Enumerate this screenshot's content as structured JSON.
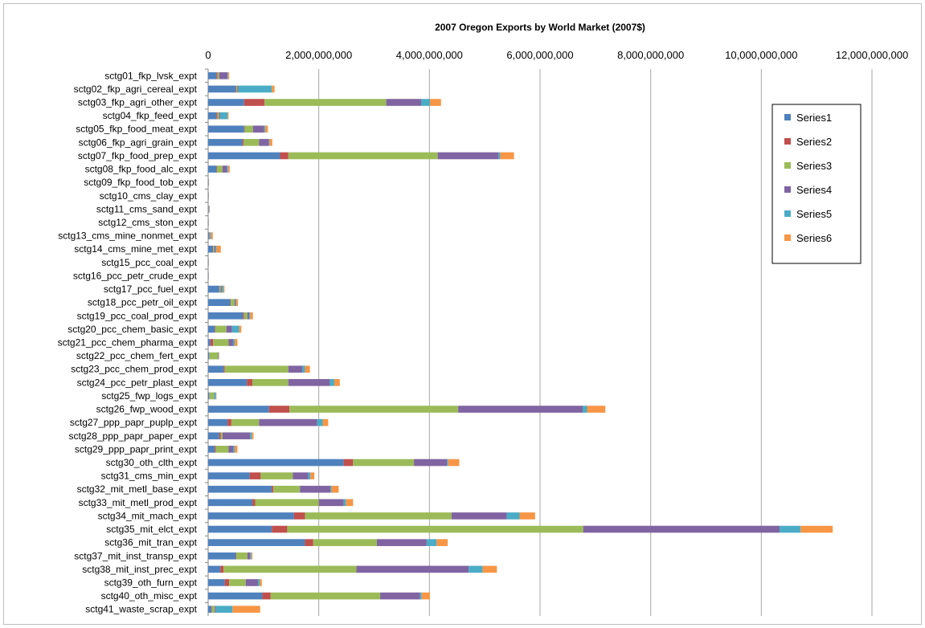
{
  "chart_data": {
    "type": "bar",
    "orientation": "horizontal",
    "stacked": true,
    "title": "2007 Oregon Exports by World Market (2007$)",
    "xlim": [
      0,
      12000000000
    ],
    "x_ticks": [
      0,
      2000000000,
      4000000000,
      6000000000,
      8000000000,
      10000000000,
      12000000000
    ],
    "x_tick_labels": [
      "0",
      "2,000,000,000",
      "4,000,000,000",
      "6,000,000,000",
      "8,000,000,000",
      "10,000,000,000",
      "12,000,000,000"
    ],
    "x_axis_position": "top",
    "grid": true,
    "legend_position": "right",
    "categories": [
      "sctg01_fkp_lvsk_expt",
      "sctg02_fkp_agri_cereal_expt",
      "sctg03_fkp_agri_other_expt",
      "sctg04_fkp_feed_expt",
      "sctg05_fkp_food_meat_expt",
      "sctg06_fkp_agri_grain_expt",
      "sctg07_fkp_food_prep_expt",
      "sctg08_fkp_food_alc_expt",
      "sctg09_fkp_food_tob_expt",
      "sctg10_cms_clay_expt",
      "sctg11_cms_sand_expt",
      "sctg12_cms_ston_expt",
      "sctg13_cms_mine_nonmet_expt",
      "sctg14_cms_mine_met_expt",
      "sctg15_pcc_coal_expt",
      "sctg16_pcc_petr_crude_expt",
      "sctg17_pcc_fuel_expt",
      "sctg18_pcc_petr_oil_expt",
      "sctg19_pcc_coal_prod_expt",
      "sctg20_pcc_chem_basic_expt",
      "sctg21_pcc_chem_pharma_expt",
      "sctg22_pcc_chem_fert_expt",
      "sctg23_pcc_chem_prod_expt",
      "sctg24_pcc_petr_plast_expt",
      "sctg25_fwp_logs_expt",
      "sctg26_fwp_wood_expt",
      "sctg27_ppp_papr_puplp_expt",
      "sctg28_ppp_papr_paper_expt",
      "sctg29_ppp_papr_print_expt",
      "sctg30_oth_clth_expt",
      "sctg31_cms_min_expt",
      "sctg32_mit_metl_base_expt",
      "sctg33_mit_metl_prod_expt",
      "sctg34_mit_mach_expt",
      "sctg35_mit_elct_expt",
      "sctg36_mit_tran_expt",
      "sctg37_mit_inst_transp_expt",
      "sctg38_mit_inst_prec_expt",
      "sctg39_oth_furn_expt",
      "sctg40_oth_misc_expt",
      "sctg41_waste_scrap_expt"
    ],
    "series": [
      {
        "name": "Series1",
        "color": "#4f81bd",
        "values": [
          150000000,
          500000000,
          650000000,
          150000000,
          650000000,
          620000000,
          1300000000,
          150000000,
          5000000,
          5000000,
          10000000,
          5000000,
          20000000,
          80000000,
          5000000,
          5000000,
          200000000,
          400000000,
          630000000,
          120000000,
          40000000,
          20000000,
          280000000,
          700000000,
          20000000,
          1100000000,
          350000000,
          200000000,
          120000000,
          2450000000,
          750000000,
          1150000000,
          800000000,
          1550000000,
          1150000000,
          1750000000,
          500000000,
          220000000,
          300000000,
          980000000,
          60000000
        ]
      },
      {
        "name": "Series2",
        "color": "#c0504d",
        "values": [
          20000000,
          10000000,
          370000000,
          20000000,
          10000000,
          20000000,
          150000000,
          10000000,
          2000000,
          1000000,
          2000000,
          1000000,
          5000000,
          10000000,
          1000000,
          1000000,
          5000000,
          10000000,
          20000000,
          10000000,
          50000000,
          5000000,
          20000000,
          100000000,
          5000000,
          370000000,
          70000000,
          30000000,
          20000000,
          170000000,
          200000000,
          30000000,
          50000000,
          200000000,
          280000000,
          150000000,
          10000000,
          60000000,
          80000000,
          150000000,
          10000000
        ]
      },
      {
        "name": "Series3",
        "color": "#9bbb59",
        "values": [
          30000000,
          20000000,
          2200000000,
          30000000,
          150000000,
          280000000,
          2700000000,
          100000000,
          3000000,
          2000000,
          5000000,
          2000000,
          10000000,
          20000000,
          2000000,
          2000000,
          20000000,
          70000000,
          60000000,
          200000000,
          280000000,
          150000000,
          1150000000,
          650000000,
          80000000,
          3050000000,
          500000000,
          30000000,
          230000000,
          1100000000,
          580000000,
          480000000,
          1150000000,
          2650000000,
          5350000000,
          1150000000,
          200000000,
          2400000000,
          300000000,
          1980000000,
          50000000
        ]
      },
      {
        "name": "Series4",
        "color": "#8064a2",
        "values": [
          150000000,
          20000000,
          630000000,
          20000000,
          200000000,
          180000000,
          1100000000,
          80000000,
          2000000,
          2000000,
          5000000,
          2000000,
          10000000,
          20000000,
          2000000,
          2000000,
          20000000,
          20000000,
          30000000,
          100000000,
          80000000,
          5000000,
          250000000,
          750000000,
          5000000,
          2250000000,
          1050000000,
          500000000,
          80000000,
          600000000,
          280000000,
          550000000,
          450000000,
          1000000000,
          3550000000,
          900000000,
          50000000,
          2030000000,
          220000000,
          720000000,
          20000000
        ]
      },
      {
        "name": "Series5",
        "color": "#4bacc6",
        "values": [
          10000000,
          600000000,
          160000000,
          130000000,
          20000000,
          10000000,
          30000000,
          20000000,
          2000000,
          2000000,
          3000000,
          1000000,
          10000000,
          20000000,
          2000000,
          1000000,
          30000000,
          10000000,
          20000000,
          130000000,
          30000000,
          10000000,
          50000000,
          80000000,
          30000000,
          80000000,
          100000000,
          30000000,
          30000000,
          20000000,
          40000000,
          20000000,
          40000000,
          230000000,
          380000000,
          180000000,
          20000000,
          250000000,
          30000000,
          30000000,
          300000000
        ]
      },
      {
        "name": "Series6",
        "color": "#f79646",
        "values": [
          20000000,
          50000000,
          200000000,
          20000000,
          50000000,
          50000000,
          250000000,
          30000000,
          2000000,
          2000000,
          5000000,
          1000000,
          30000000,
          80000000,
          2000000,
          1000000,
          20000000,
          30000000,
          50000000,
          40000000,
          50000000,
          10000000,
          90000000,
          100000000,
          10000000,
          330000000,
          100000000,
          30000000,
          50000000,
          200000000,
          70000000,
          130000000,
          130000000,
          280000000,
          580000000,
          200000000,
          20000000,
          260000000,
          40000000,
          150000000,
          500000000
        ]
      }
    ]
  }
}
